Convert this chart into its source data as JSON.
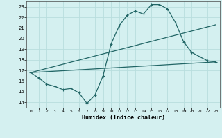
{
  "xlabel": "Humidex (Indice chaleur)",
  "ylabel": "",
  "xlim": [
    -0.5,
    23.5
  ],
  "ylim": [
    13.5,
    23.5
  ],
  "xticks": [
    0,
    1,
    2,
    3,
    4,
    5,
    6,
    7,
    8,
    9,
    10,
    11,
    12,
    13,
    14,
    15,
    16,
    17,
    18,
    19,
    20,
    21,
    22,
    23
  ],
  "yticks": [
    14,
    15,
    16,
    17,
    18,
    19,
    20,
    21,
    22,
    23
  ],
  "background_color": "#d4f0f0",
  "grid_color": "#b8dede",
  "line_color": "#226666",
  "line1_x": [
    0,
    1,
    2,
    3,
    4,
    5,
    6,
    7,
    8,
    9,
    10,
    11,
    12,
    13,
    14,
    15,
    16,
    17,
    18,
    19,
    20,
    21,
    22,
    23
  ],
  "line1_y": [
    16.8,
    16.3,
    15.7,
    15.5,
    15.2,
    15.3,
    14.9,
    13.9,
    14.7,
    16.5,
    19.5,
    21.2,
    22.2,
    22.6,
    22.3,
    23.2,
    23.2,
    22.8,
    21.5,
    19.7,
    18.7,
    18.3,
    17.9,
    17.8
  ],
  "line2_x": [
    0,
    23
  ],
  "line2_y": [
    16.8,
    21.3
  ],
  "line3_x": [
    0,
    23
  ],
  "line3_y": [
    16.8,
    17.8
  ],
  "marker_style": "+",
  "linewidth": 0.9,
  "markersize": 3.0
}
